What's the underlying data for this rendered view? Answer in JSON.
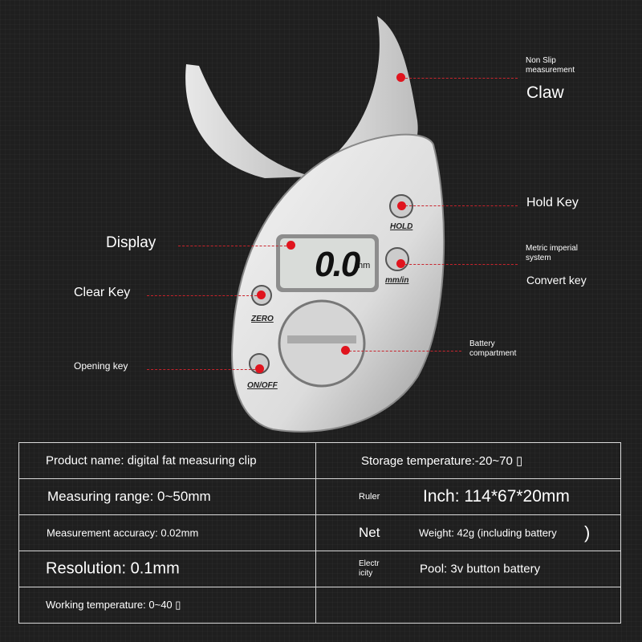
{
  "callouts": {
    "claw_note": "Non Slip measurement",
    "claw": "Claw",
    "hold_key": "Hold Key",
    "convert_note": "Metric imperial system",
    "convert_key": "Convert key",
    "display": "Display",
    "clear_key": "Clear Key",
    "opening_key": "Opening key",
    "battery": "Battery compartment"
  },
  "device": {
    "reading": "0.0",
    "unit": "mm",
    "hold_label": "HOLD",
    "convert_label": "mm/in",
    "zero_label": "ZERO",
    "onoff_label": "ON/OFF"
  },
  "specs": {
    "product_name": "Product name: digital fat measuring clip",
    "storage_temp": "Storage temperature:-20~70 ▯",
    "measuring_range": "Measuring range: 0~50mm",
    "ruler_label": "Ruler",
    "ruler_value": "Inch: 114*67*20mm",
    "accuracy": "Measurement accuracy: 0.02mm",
    "net_label": "Net",
    "net_value": "Weight: 42g (including battery",
    "net_paren": ")",
    "resolution": "Resolution: 0.1mm",
    "electricity_label": "Electr icity",
    "electricity_value": "Pool: 3v button battery",
    "working_temp": "Working temperature: 0~40 ▯"
  },
  "colors": {
    "accent": "#e0141e",
    "background": "#1f1f1f"
  }
}
